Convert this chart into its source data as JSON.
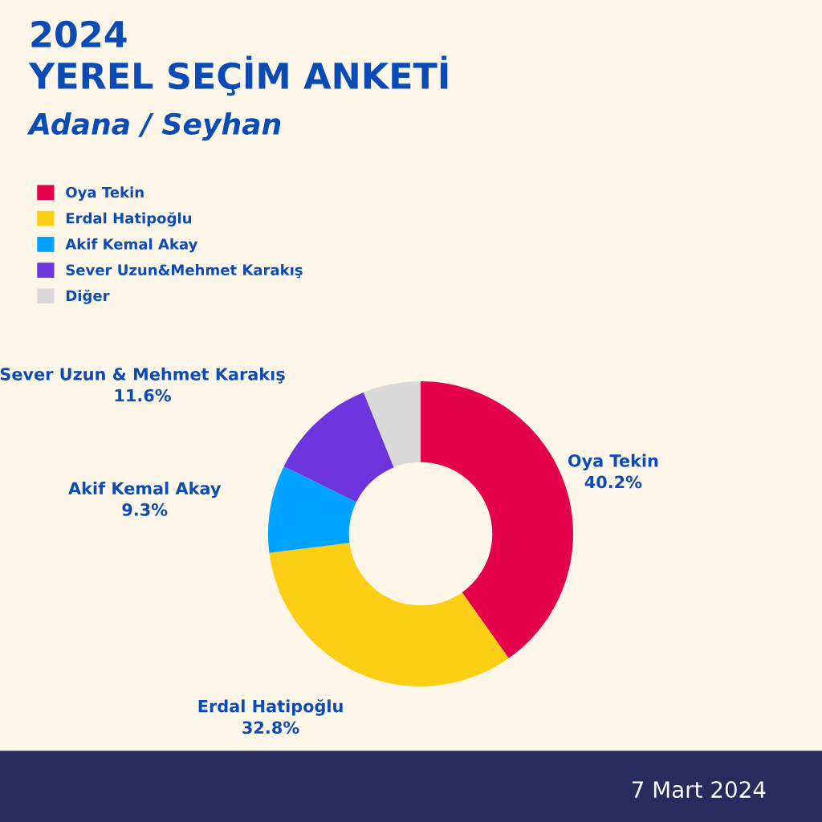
{
  "chart_data": {
    "type": "donut",
    "title": "2024\nYEREL SEÇİM ANKETİ",
    "subtitle": "Adana / Seyhan",
    "categories": [
      "Oya Tekin",
      "Erdal Hatipoğlu",
      "Akif Kemal Akay",
      "Sever Uzun&Mehmet Karakış",
      "Diğer"
    ],
    "values": [
      40.2,
      32.8,
      9.3,
      11.6,
      6.1
    ],
    "colors": [
      "#e4004b",
      "#fccf14",
      "#00a3ff",
      "#6c35de",
      "#d9d9d9"
    ],
    "value_labels": [
      "Oya Tekin\n40.2%",
      "Erdal Hatipoğlu\n32.8%",
      "Akif Kemal Akay\n9.3%",
      "Sever Uzun & Mehmet Karakış\n11.6%",
      null
    ],
    "legend": "top left",
    "annotations": [
      "7 Mart 2024"
    ]
  }
}
